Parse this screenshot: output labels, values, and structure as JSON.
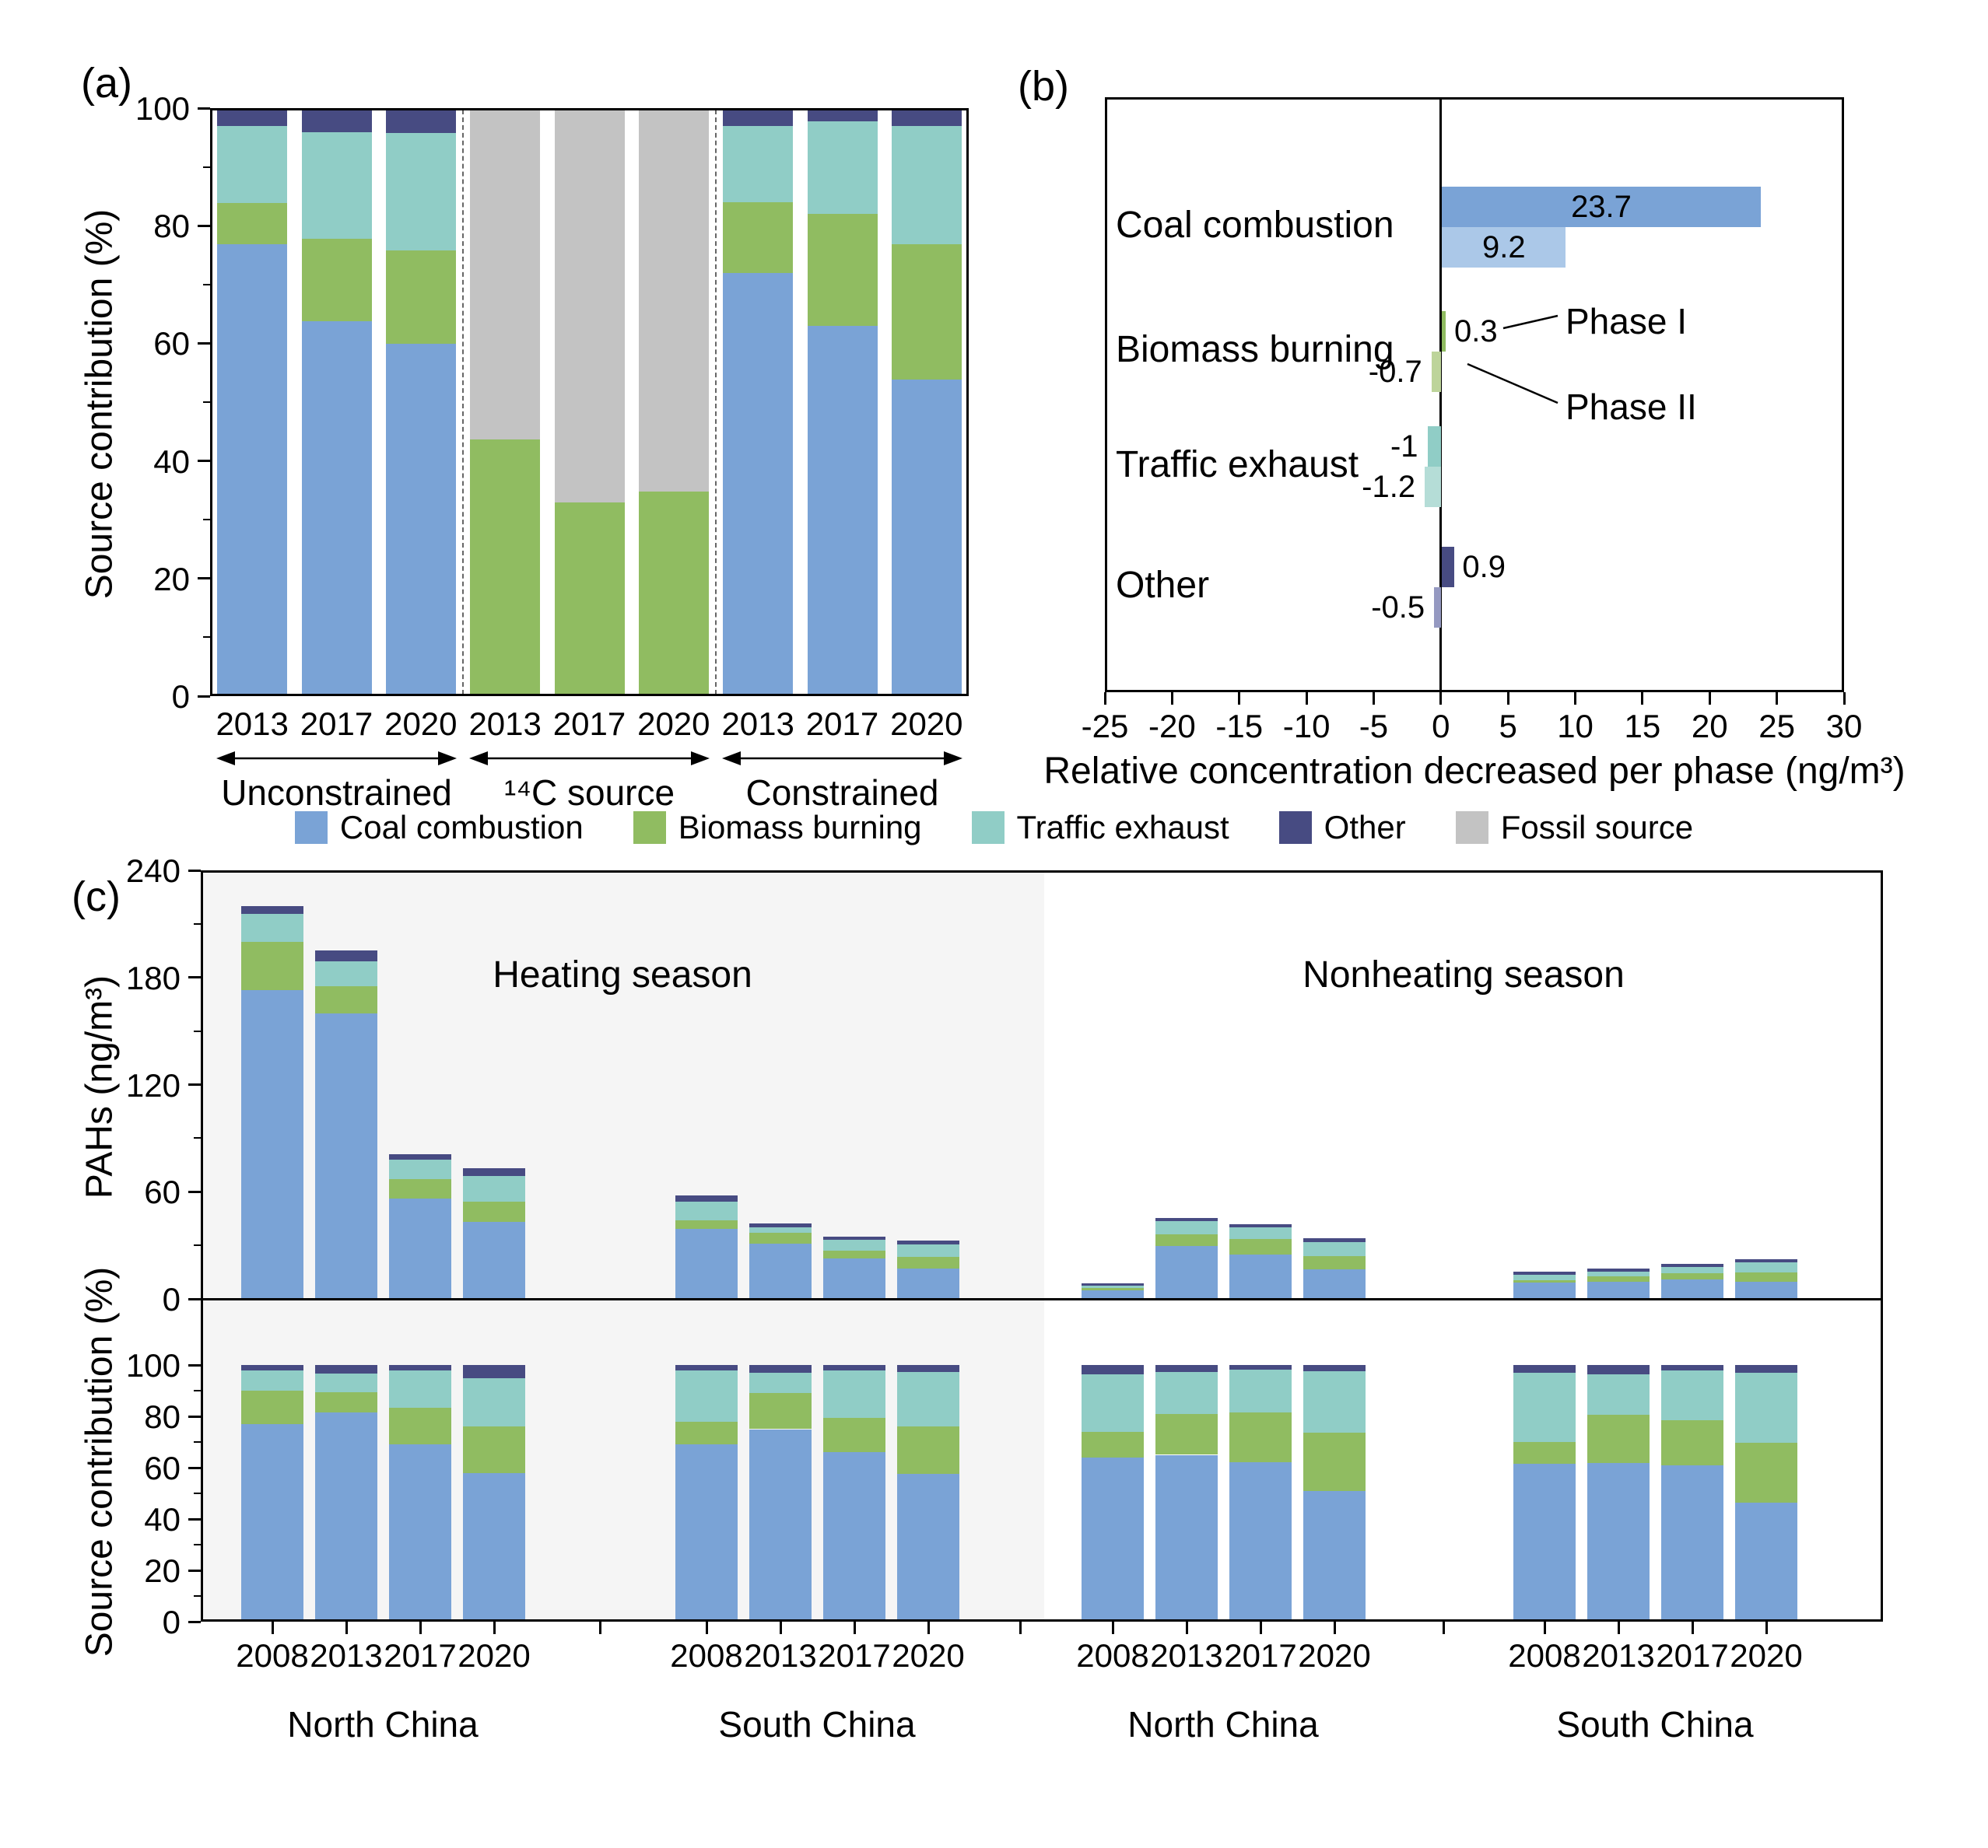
{
  "panels": {
    "a": "(a)",
    "b": "(b)",
    "c": "(c)"
  },
  "colors": {
    "coal": "#7AA3D6",
    "biomass": "#90BC61",
    "traffic": "#90CDC6",
    "other": "#474B82",
    "fossil": "#C3C3C3",
    "coal_light": "#ABC8E8",
    "biomass_light": "#BDD49A",
    "traffic_light": "#B5DDD7",
    "other_light": "#9599C1",
    "heating_bg": "#F5F5F5",
    "axis": "#000000"
  },
  "legend": {
    "items": [
      {
        "label": "Coal combustion",
        "color_key": "coal"
      },
      {
        "label": "Biomass burning",
        "color_key": "biomass"
      },
      {
        "label": "Traffic exhaust",
        "color_key": "traffic"
      },
      {
        "label": "Other",
        "color_key": "other"
      },
      {
        "label": "Fossil source",
        "color_key": "fossil"
      }
    ]
  },
  "chart_data": [
    {
      "id": "panel_a",
      "type": "bar",
      "stacked": true,
      "percent": true,
      "ylabel": "Source contribution (%)",
      "ylim": [
        0,
        100
      ],
      "yticks": [
        0,
        20,
        40,
        60,
        80,
        100
      ],
      "group_labels": [
        "Unconstrained",
        "¹⁴C source",
        "Constrained"
      ],
      "categories": [
        "2013",
        "2017",
        "2020",
        "2013",
        "2017",
        "2020",
        "2013",
        "2017",
        "2020"
      ],
      "series": [
        {
          "name": "Coal combustion",
          "color_key": "coal",
          "values": [
            76.9,
            63.8,
            59.9,
            0,
            0,
            0,
            72.0,
            63.0,
            53.9
          ]
        },
        {
          "name": "Biomass burning",
          "color_key": "biomass",
          "values": [
            7.0,
            14.0,
            15.9,
            43.7,
            32.9,
            34.8,
            12.0,
            19.0,
            23.0
          ]
        },
        {
          "name": "Traffic exhaust",
          "color_key": "traffic",
          "values": [
            13.0,
            18.1,
            20.0,
            0,
            0,
            0,
            13.0,
            15.8,
            20.1
          ]
        },
        {
          "name": "Other",
          "color_key": "other",
          "values": [
            3.1,
            4.1,
            4.2,
            0,
            0,
            0,
            3.0,
            2.2,
            3.0
          ]
        },
        {
          "name": "Fossil source",
          "color_key": "fossil",
          "values": [
            0,
            0,
            0,
            56.3,
            67.1,
            65.2,
            0,
            0,
            0
          ]
        }
      ]
    },
    {
      "id": "panel_b",
      "type": "bar_horizontal",
      "xlabel": "Relative concentration decreased per phase (ng/m³)",
      "xlim": [
        -25,
        30
      ],
      "xticks": [
        -25,
        -20,
        -15,
        -10,
        -5,
        0,
        5,
        10,
        15,
        20,
        25,
        30
      ],
      "categories": [
        "Coal combustion",
        "Biomass burning",
        "Traffic exhaust",
        "Other"
      ],
      "series": [
        {
          "name": "Phase I",
          "values": [
            23.7,
            0.3,
            -1,
            0.9
          ],
          "labels": [
            "23.7",
            "0.3",
            "-1",
            "0.9"
          ],
          "color_keys": [
            "coal",
            "biomass",
            "traffic",
            "other"
          ]
        },
        {
          "name": "Phase II",
          "values": [
            9.2,
            -0.7,
            -1.2,
            -0.5
          ],
          "labels": [
            "9.2",
            "-0.7",
            "-1.2",
            "-0.5"
          ],
          "color_keys": [
            "coal_light",
            "biomass_light",
            "traffic_light",
            "other_light"
          ]
        }
      ],
      "annotations": [
        "Phase I",
        "Phase II"
      ]
    },
    {
      "id": "panel_c_concentration",
      "type": "bar",
      "stacked": true,
      "ylabel": "PAHs (ng/m³)",
      "ylim": [
        0,
        240
      ],
      "yticks": [
        0,
        60,
        120,
        180,
        240
      ],
      "season_labels": [
        "Heating season",
        "Nonheating season"
      ],
      "groups": [
        "North China",
        "South China",
        "North China",
        "South China"
      ],
      "years": [
        "2008",
        "2013",
        "2017",
        "2020"
      ],
      "series": [
        {
          "name": "Coal combustion",
          "color_key": "coal",
          "values": [
            173,
            160,
            56,
            43,
            39,
            31,
            22.5,
            17,
            4.7,
            29.5,
            25,
            16.5,
            9,
            9.7,
            11,
            9.7
          ]
        },
        {
          "name": "Biomass burning",
          "color_key": "biomass",
          "values": [
            27,
            15,
            11,
            11.5,
            5,
            6,
            4.5,
            6.5,
            1.2,
            6.5,
            8.5,
            7.5,
            1.5,
            2.8,
            3.5,
            5
          ]
        },
        {
          "name": "Traffic exhaust",
          "color_key": "traffic",
          "values": [
            15.5,
            14,
            11,
            14.5,
            10.5,
            3.2,
            6,
            7,
            1.5,
            7.5,
            6.5,
            8,
            3,
            2.7,
            3.5,
            5.6
          ]
        },
        {
          "name": "Other",
          "color_key": "other",
          "values": [
            4.5,
            6,
            3,
            4,
            3.5,
            2,
            2,
            2,
            1.5,
            2,
            2,
            1.8,
            1.8,
            1.9,
            1.8,
            1.8
          ]
        }
      ]
    },
    {
      "id": "panel_c_contribution",
      "type": "bar",
      "stacked": true,
      "percent": true,
      "ylabel": "Source contribution (%)",
      "ylim": [
        0,
        100
      ],
      "yticks": [
        0,
        20,
        40,
        60,
        80,
        100
      ],
      "groups": [
        "North China",
        "South China",
        "North China",
        "South China"
      ],
      "years": [
        "2008",
        "2013",
        "2017",
        "2020"
      ],
      "series": [
        {
          "name": "Coal combustion",
          "color_key": "coal",
          "values": [
            77,
            81.5,
            69,
            58,
            69,
            75,
            66,
            57.5,
            64,
            65,
            62,
            51,
            61.6,
            61.7,
            61,
            46.4
          ]
        },
        {
          "name": "Biomass burning",
          "color_key": "biomass",
          "values": [
            13,
            8,
            14.3,
            18,
            9,
            14,
            13.4,
            18.5,
            10,
            16,
            19.4,
            22.6,
            8.4,
            19,
            17.5,
            23.3
          ]
        },
        {
          "name": "Traffic exhaust",
          "color_key": "traffic",
          "values": [
            8,
            7.3,
            14.7,
            19,
            20,
            8,
            18.6,
            21.3,
            22.4,
            16.3,
            16.8,
            23.9,
            26.9,
            15.6,
            19.4,
            27.3
          ]
        },
        {
          "name": "Other",
          "color_key": "other",
          "values": [
            2,
            3.2,
            2,
            5,
            2,
            3,
            2,
            2.7,
            3.6,
            2.7,
            1.8,
            2.5,
            3.1,
            3.7,
            2.1,
            3
          ]
        }
      ]
    }
  ]
}
